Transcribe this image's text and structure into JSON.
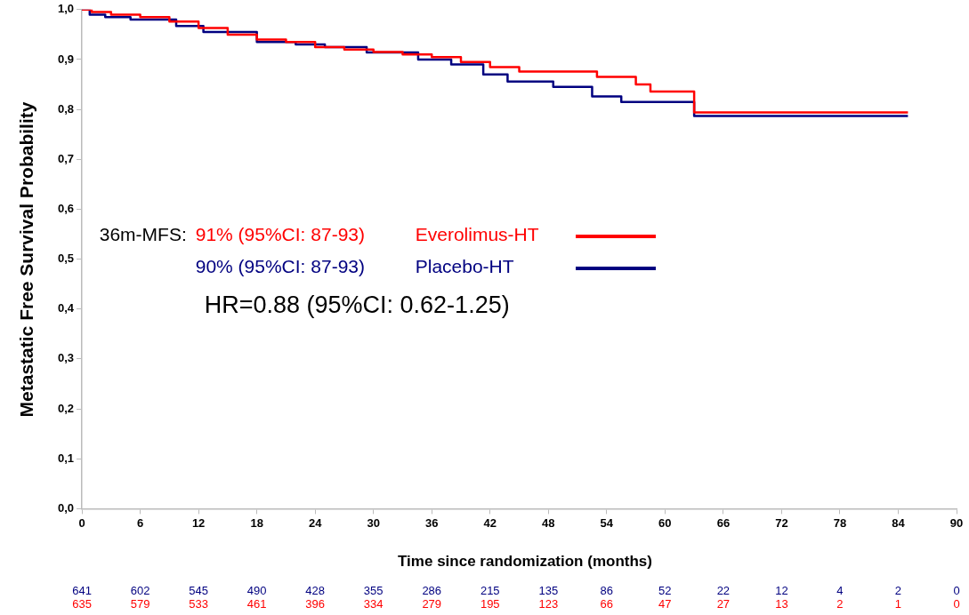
{
  "chart_data": {
    "type": "step",
    "xlabel": "Time since randomization (months)",
    "ylabel": "Metastatic  Free  Survival Probability",
    "series": [
      {
        "name": "Everolimus-HT",
        "color": "#ff0000",
        "x": [
          0,
          1,
          3,
          6,
          9,
          12,
          15,
          18,
          21,
          24,
          27,
          30,
          33,
          36,
          39,
          42,
          45,
          53,
          57,
          58.5,
          63,
          85
        ],
        "values": [
          1.0,
          0.995,
          0.99,
          0.985,
          0.976,
          0.963,
          0.95,
          0.94,
          0.935,
          0.925,
          0.92,
          0.915,
          0.91,
          0.905,
          0.895,
          0.885,
          0.876,
          0.865,
          0.85,
          0.836,
          0.794,
          0.794
        ]
      },
      {
        "name": "Placebo-HT",
        "color": "#000080",
        "x": [
          0,
          0.8,
          2.4,
          5,
          9.7,
          12.5,
          18,
          22,
          25,
          29.3,
          34.6,
          38,
          41.3,
          43.8,
          48.5,
          52.5,
          55.5,
          63,
          85
        ],
        "values": [
          1.0,
          0.99,
          0.985,
          0.98,
          0.967,
          0.955,
          0.935,
          0.93,
          0.925,
          0.914,
          0.9,
          0.89,
          0.87,
          0.856,
          0.845,
          0.826,
          0.815,
          0.787,
          0.787
        ]
      }
    ],
    "xlim": [
      0,
      90
    ],
    "xticks": [
      0,
      6,
      12,
      18,
      24,
      30,
      36,
      42,
      48,
      54,
      60,
      66,
      72,
      78,
      84,
      90
    ],
    "ylim": [
      0,
      1.0
    ],
    "yticks": [
      {
        "value": 0,
        "label": "0,0"
      },
      {
        "value": 0.1,
        "label": "0,1"
      },
      {
        "value": 0.2,
        "label": "0,2"
      },
      {
        "value": 0.3,
        "label": "0,3"
      },
      {
        "value": 0.4,
        "label": "0,4"
      },
      {
        "value": 0.5,
        "label": "0,5"
      },
      {
        "value": 0.6,
        "label": "0,6"
      },
      {
        "value": 0.7,
        "label": "0,7"
      },
      {
        "value": 0.8,
        "label": "0,8"
      },
      {
        "value": 0.9,
        "label": "0,9"
      },
      {
        "value": 1.0,
        "label": "1,0"
      }
    ],
    "grid": false,
    "legend": "left",
    "marker": "none",
    "line_style": "solid",
    "annotations": [
      "36m-MFS:",
      "91% (95%CI: 87-93)",
      "90% (95%CI: 87-93)",
      "HR=0.88 (95%CI: 0.62-1.25)",
      "641 602 545 490 428 355 286 215 135 86 52 22 12 4 2 0",
      "635 579 533 461 396 334 279 195 123 66 47 27 13 2 1 0"
    ]
  }
}
